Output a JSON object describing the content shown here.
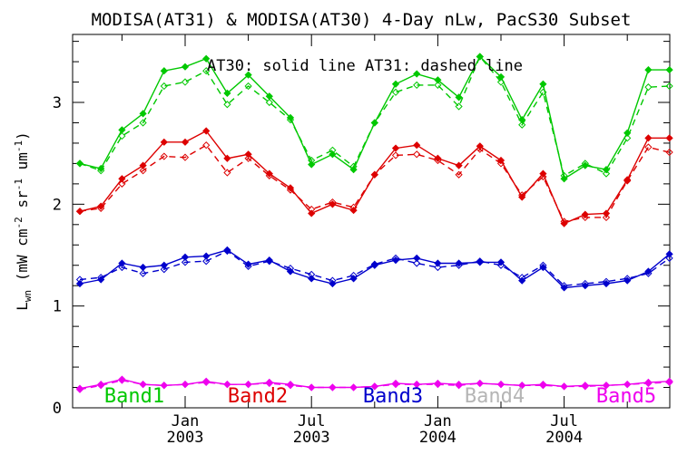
{
  "window": {
    "background": "#ffffff"
  },
  "chart_data": {
    "type": "line",
    "title": "MODISA(AT31) & MODISA(AT30) 4-Day nLw, PacS30 Subset",
    "annotation": "AT30: solid line   AT31: dashed line",
    "ylabel_plain": "Lwn (mW cm-2 sr-1 um-1)",
    "ylabel_rich": [
      {
        "t": "L"
      },
      {
        "t": "wn",
        "sub": true
      },
      {
        "t": " (mW cm"
      },
      {
        "t": "-2",
        "sup": true
      },
      {
        "t": " sr"
      },
      {
        "t": "-1",
        "sup": true
      },
      {
        "t": " um"
      },
      {
        "t": "-1",
        "sup": true
      },
      {
        "t": ")"
      }
    ],
    "axis_color": "#000000",
    "ylim": [
      0,
      3.67
    ],
    "y_major_ticks": [
      0,
      1,
      2,
      3
    ],
    "y_minor_step": 0.2,
    "x_months": [
      "Aug 2002",
      "Sep 2002",
      "Oct 2002",
      "Nov 2002",
      "Dec 2002",
      "Jan 2003",
      "Feb 2003",
      "Mar 2003",
      "Apr 2003",
      "May 2003",
      "Jun 2003",
      "Jul 2003",
      "Aug 2003",
      "Sep 2003",
      "Oct 2003",
      "Nov 2003",
      "Dec 2003",
      "Jan 2004",
      "Feb 2004",
      "Mar 2004",
      "Apr 2004",
      "May 2004",
      "Jun 2004",
      "Jul 2004",
      "Aug 2004",
      "Sep 2004",
      "Oct 2004",
      "Nov 2004",
      "Dec 2004"
    ],
    "x_major_tick_months": [
      5,
      11,
      17,
      23
    ],
    "x_major_tick_labels": [
      [
        "Jan",
        "2003"
      ],
      [
        "Jul",
        "2003"
      ],
      [
        "Jan",
        "2004"
      ],
      [
        "Jul",
        "2004"
      ]
    ],
    "x_minor_tick_months": [
      2,
      8,
      14,
      20,
      26
    ],
    "grid": false,
    "legend_bands": [
      {
        "label": "Band1",
        "color": "#00c800"
      },
      {
        "label": "Band2",
        "color": "#dd0000"
      },
      {
        "label": "Band3",
        "color": "#0000cc"
      },
      {
        "label": "Band4",
        "color": "#b5b5b5",
        "note": "label only, no visible line"
      },
      {
        "label": "Band5",
        "color": "#ee00ee"
      }
    ],
    "series": [
      {
        "name": "Band1 AT30",
        "band": "Band1",
        "sensor": "AT30",
        "style": "solid",
        "color": "#00c800",
        "values": [
          2.4,
          2.35,
          2.73,
          2.89,
          3.31,
          3.35,
          3.43,
          3.09,
          3.27,
          3.06,
          2.85,
          2.39,
          2.49,
          2.34,
          2.8,
          3.18,
          3.28,
          3.22,
          3.05,
          3.45,
          3.25,
          2.83,
          3.18,
          2.25,
          2.38,
          2.34,
          2.7,
          3.32,
          3.32
        ]
      },
      {
        "name": "Band1 AT31",
        "band": "Band1",
        "sensor": "AT31",
        "style": "dashed",
        "color": "#00c800",
        "values": [
          2.4,
          2.33,
          2.67,
          2.8,
          3.16,
          3.2,
          3.31,
          2.98,
          3.16,
          3.0,
          2.83,
          2.43,
          2.53,
          2.37,
          2.8,
          3.1,
          3.17,
          3.17,
          2.96,
          3.45,
          3.2,
          2.78,
          3.1,
          2.28,
          2.4,
          2.3,
          2.65,
          3.15,
          3.16
        ]
      },
      {
        "name": "Band2 AT30",
        "band": "Band2",
        "sensor": "AT30",
        "style": "solid",
        "color": "#dd0000",
        "values": [
          1.93,
          1.98,
          2.25,
          2.38,
          2.61,
          2.61,
          2.72,
          2.45,
          2.49,
          2.3,
          2.16,
          1.91,
          2.0,
          1.94,
          2.29,
          2.55,
          2.58,
          2.45,
          2.38,
          2.57,
          2.43,
          2.07,
          2.3,
          1.81,
          1.9,
          1.91,
          2.24,
          2.65,
          2.65
        ]
      },
      {
        "name": "Band2 AT31",
        "band": "Band2",
        "sensor": "AT31",
        "style": "dashed",
        "color": "#dd0000",
        "values": [
          1.93,
          1.96,
          2.2,
          2.33,
          2.47,
          2.46,
          2.58,
          2.31,
          2.45,
          2.28,
          2.14,
          1.95,
          2.02,
          1.97,
          2.29,
          2.48,
          2.49,
          2.43,
          2.29,
          2.54,
          2.4,
          2.09,
          2.27,
          1.83,
          1.87,
          1.87,
          2.23,
          2.56,
          2.51
        ]
      },
      {
        "name": "Band3 AT30",
        "band": "Band3",
        "sensor": "AT30",
        "style": "solid",
        "color": "#0000cc",
        "values": [
          1.22,
          1.26,
          1.42,
          1.38,
          1.4,
          1.48,
          1.49,
          1.55,
          1.41,
          1.45,
          1.34,
          1.27,
          1.22,
          1.27,
          1.4,
          1.45,
          1.47,
          1.42,
          1.42,
          1.43,
          1.43,
          1.25,
          1.38,
          1.18,
          1.2,
          1.22,
          1.25,
          1.34,
          1.51
        ]
      },
      {
        "name": "Band3 AT31",
        "band": "Band3",
        "sensor": "AT31",
        "style": "dashed",
        "color": "#0000cc",
        "values": [
          1.26,
          1.28,
          1.38,
          1.32,
          1.36,
          1.43,
          1.44,
          1.54,
          1.39,
          1.44,
          1.37,
          1.31,
          1.25,
          1.3,
          1.41,
          1.47,
          1.42,
          1.38,
          1.4,
          1.44,
          1.4,
          1.28,
          1.4,
          1.2,
          1.22,
          1.24,
          1.27,
          1.32,
          1.47
        ]
      },
      {
        "name": "Band5 AT30",
        "band": "Band5",
        "sensor": "AT30",
        "style": "solid",
        "color": "#ee00ee",
        "values": [
          0.19,
          0.23,
          0.28,
          0.23,
          0.22,
          0.23,
          0.26,
          0.23,
          0.23,
          0.25,
          0.23,
          0.2,
          0.2,
          0.2,
          0.21,
          0.24,
          0.23,
          0.24,
          0.23,
          0.24,
          0.23,
          0.22,
          0.23,
          0.21,
          0.22,
          0.22,
          0.23,
          0.25,
          0.26
        ]
      },
      {
        "name": "Band5 AT31",
        "band": "Band5",
        "sensor": "AT31",
        "style": "dashed",
        "color": "#ee00ee",
        "values": [
          0.18,
          0.22,
          0.27,
          0.23,
          0.22,
          0.23,
          0.25,
          0.23,
          0.23,
          0.24,
          0.22,
          0.2,
          0.2,
          0.2,
          0.21,
          0.23,
          0.23,
          0.23,
          0.22,
          0.24,
          0.23,
          0.22,
          0.22,
          0.21,
          0.21,
          0.22,
          0.23,
          0.24,
          0.25
        ]
      }
    ]
  }
}
